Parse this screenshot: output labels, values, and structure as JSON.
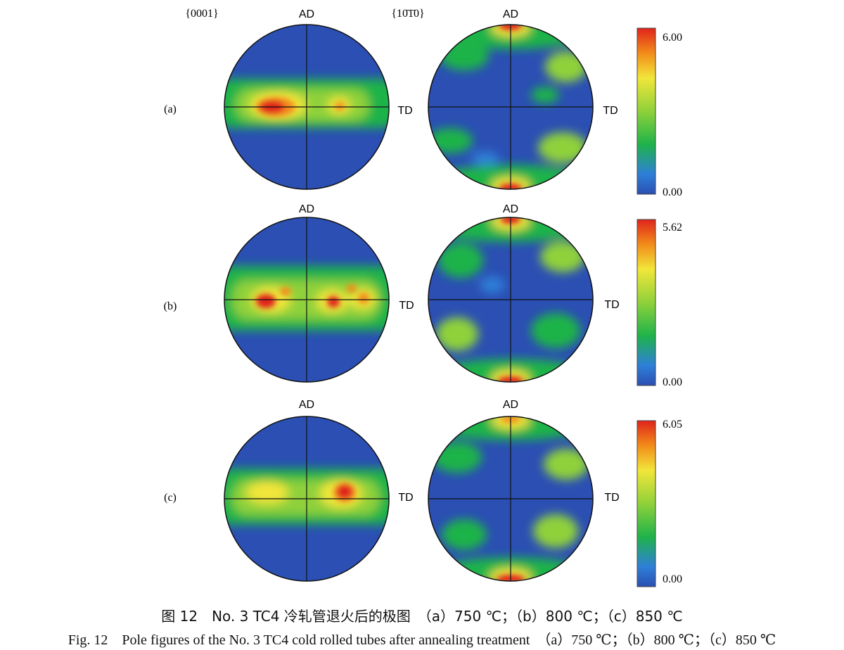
{
  "figure": {
    "pole_labels": {
      "basal": "{0001}",
      "prismatic": "{10̄1̄0}"
    },
    "axis_labels": {
      "ad": "AD",
      "td": "TD"
    },
    "panels": [
      {
        "label": "(a)",
        "max_value": "6.00",
        "min_value": "0.00",
        "max_intensity": 6.0,
        "condition": "750 ℃"
      },
      {
        "label": "(b)",
        "max_value": "5.62",
        "min_value": "0.00",
        "max_intensity": 5.62,
        "condition": "800 ℃"
      },
      {
        "label": "(c)",
        "max_value": "6.05",
        "min_value": "0.00",
        "max_intensity": 6.05,
        "condition": "850 ℃"
      }
    ],
    "colormap": [
      "#2b4fb3",
      "#2e7fd8",
      "#1fb34a",
      "#8fd13a",
      "#f2e63a",
      "#f28c1a",
      "#e0241b"
    ]
  },
  "caption": {
    "cn": "图 12　No. 3 TC4 冷轧管退火后的极图　（a）750 ℃；（b）800 ℃；（c）850 ℃",
    "en": "Fig. 12　Pole figures of the No. 3 TC4 cold rolled tubes after annealing treatment　（a）750 ℃；（b）800 ℃；（c）850 ℃"
  }
}
